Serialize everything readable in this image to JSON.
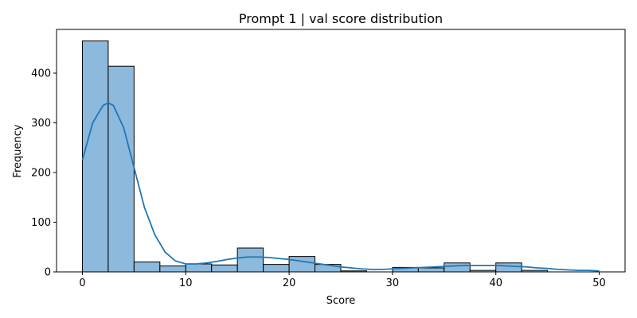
{
  "chart_data": {
    "type": "bar",
    "title": "Prompt 1 | val score distribution",
    "xlabel": "Score",
    "ylabel": "Frequency",
    "xlim": [
      -2.5,
      52.5
    ],
    "ylim": [
      0,
      488
    ],
    "xticks": [
      0,
      10,
      20,
      30,
      40,
      50
    ],
    "yticks": [
      0,
      100,
      200,
      300,
      400
    ],
    "grid": false,
    "bin_edges": [
      0,
      2.5,
      5,
      7.5,
      10,
      12.5,
      15,
      17.5,
      20,
      22.5,
      25,
      27.5,
      30,
      32.5,
      35,
      37.5,
      40,
      42.5,
      45,
      47.5,
      50
    ],
    "values": [
      465,
      414,
      20,
      12,
      16,
      14,
      48,
      15,
      31,
      15,
      2,
      0,
      9,
      8,
      18,
      3,
      18,
      3,
      0,
      0
    ],
    "kde": {
      "x": [
        0,
        1,
        2,
        2.5,
        3,
        4,
        5,
        6,
        7,
        8,
        9,
        10,
        11,
        12,
        13,
        14,
        15,
        16,
        17,
        18,
        19,
        20,
        21,
        22,
        23,
        24,
        25,
        26,
        27,
        28,
        29,
        30,
        31,
        32,
        33,
        34,
        35,
        36,
        37,
        38,
        39,
        40,
        41,
        42,
        43,
        44,
        45,
        46,
        47,
        48,
        49,
        50
      ],
      "y": [
        225,
        300,
        335,
        340,
        335,
        290,
        210,
        130,
        75,
        40,
        22,
        16,
        16,
        18,
        21,
        25,
        28,
        30,
        30,
        29,
        27,
        25,
        22,
        19,
        16,
        13,
        10,
        8,
        6,
        5,
        5,
        6,
        7,
        8,
        9,
        10,
        11,
        12,
        13,
        13,
        13,
        13,
        12,
        11,
        10,
        8,
        7,
        5,
        4,
        3,
        3,
        2
      ]
    },
    "colors": {
      "bar_fill": "#8cb9dc",
      "bar_edge": "#000000",
      "kde_line": "#1f77b4"
    }
  }
}
